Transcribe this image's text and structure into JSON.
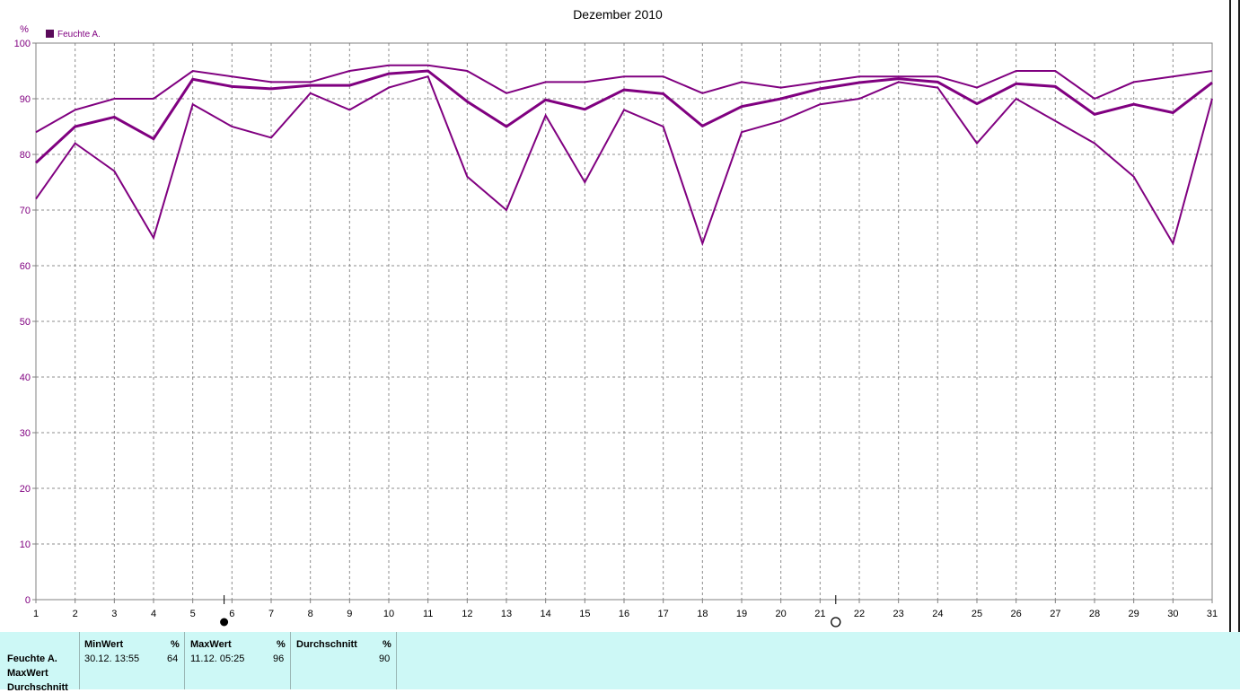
{
  "chart_data": {
    "type": "line",
    "title": "Dezember 2010",
    "ylabel": "%",
    "ylim": [
      0,
      100
    ],
    "yticks": [
      0,
      10,
      20,
      30,
      40,
      50,
      60,
      70,
      80,
      90,
      100
    ],
    "x": [
      1,
      2,
      3,
      4,
      5,
      6,
      7,
      8,
      9,
      10,
      11,
      12,
      13,
      14,
      15,
      16,
      17,
      18,
      19,
      20,
      21,
      22,
      23,
      24,
      25,
      26,
      27,
      28,
      29,
      30,
      31
    ],
    "legend": "Feuchte A.",
    "legend_position": "top-left",
    "grid": true,
    "color": "#800080",
    "series": [
      {
        "role": "max",
        "values": [
          84,
          88,
          90,
          90,
          95,
          94,
          93,
          93,
          95,
          96,
          96,
          95,
          91,
          93,
          93,
          94,
          94,
          91,
          93,
          92,
          93,
          94,
          94,
          94,
          92,
          95,
          95,
          90,
          93,
          94,
          95
        ]
      },
      {
        "role": "avg",
        "values": [
          78.5,
          85,
          86.7,
          82.8,
          93.5,
          92.2,
          91.8,
          92.4,
          92.4,
          94.5,
          95,
          89.5,
          85,
          89.8,
          88.1,
          91.6,
          90.9,
          85.1,
          88.6,
          90,
          91.8,
          92.9,
          93.6,
          93,
          89.1,
          92.7,
          92.2,
          87.2,
          89,
          87.5,
          92.9
        ]
      },
      {
        "role": "min",
        "values": [
          72,
          82,
          77,
          65,
          89,
          85,
          83,
          91,
          88,
          92,
          94,
          76,
          70,
          87,
          75,
          88,
          85,
          64,
          84,
          86,
          89,
          90,
          93,
          92,
          82,
          90,
          86,
          82,
          76,
          64,
          90
        ]
      }
    ],
    "markers": [
      {
        "x": 5.8,
        "symbol": "filled-circle"
      },
      {
        "x": 21.4,
        "symbol": "hollow-circle"
      }
    ]
  },
  "summary": {
    "rows": [
      "Feuchte A.",
      "MaxWert",
      "Durchschnitt"
    ],
    "min": {
      "header": "MinWert",
      "unit": "%",
      "date": "30.12.  13:55",
      "value": "64"
    },
    "max": {
      "header": "MaxWert",
      "unit": "%",
      "date": "11.12.  05:25",
      "value": "96"
    },
    "avg": {
      "header": "Durchschnitt",
      "unit": "%",
      "value": "90"
    }
  }
}
